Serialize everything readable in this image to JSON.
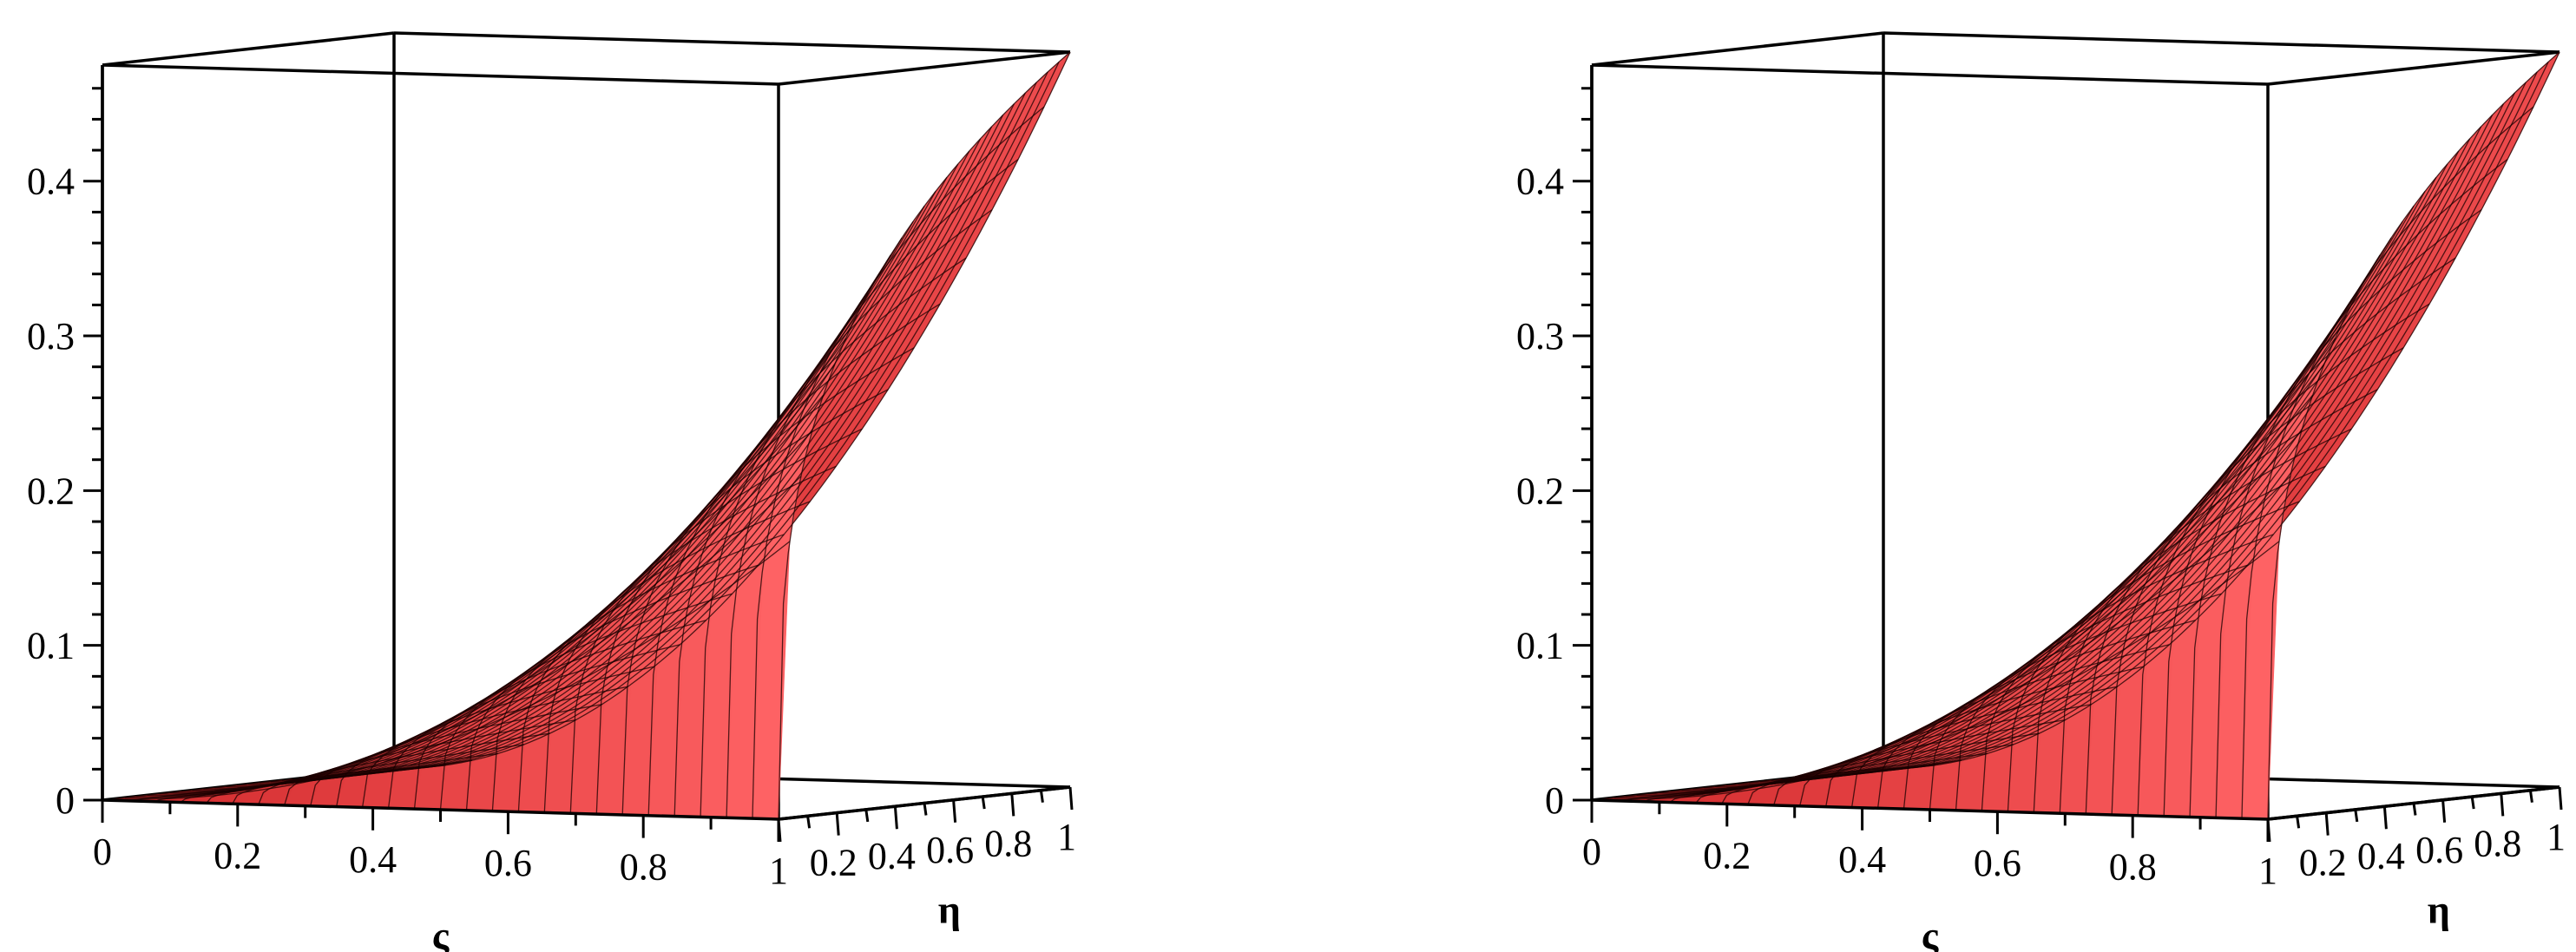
{
  "chart_data": [
    {
      "type": "surface3d",
      "xlabel": "ς",
      "ylabel": "η",
      "zlabel": "",
      "xlim": [
        0,
        1
      ],
      "ylim": [
        0,
        1
      ],
      "zlim": [
        0,
        0.475
      ],
      "x_ticks": [
        "0",
        "0.2",
        "0.4",
        "0.6",
        "0.8",
        "1"
      ],
      "y_ticks": [
        "0.2",
        "0.4",
        "0.6",
        "0.8",
        "1"
      ],
      "z_ticks": [
        "0",
        "0.1",
        "0.2",
        "0.3",
        "0.4"
      ],
      "surface": {
        "description_formula": "z ≈ 0.475 · ς² · η^0.3",
        "grid": 26,
        "color": "#e8292b",
        "mesh_color": "#1a0000",
        "corner_values": {
          "x0_y0": 0,
          "x1_y0": 0,
          "x0_y1": 0,
          "x1_y1": 0.475
        }
      }
    },
    {
      "type": "surface3d",
      "xlabel": "ς",
      "ylabel": "η",
      "zlabel": "",
      "xlim": [
        0,
        1
      ],
      "ylim": [
        0,
        1
      ],
      "zlim": [
        0,
        0.475
      ],
      "x_ticks": [
        "0",
        "0.2",
        "0.4",
        "0.6",
        "0.8",
        "1"
      ],
      "y_ticks": [
        "0.2",
        "0.4",
        "0.6",
        "0.8",
        "1"
      ],
      "z_ticks": [
        "0",
        "0.1",
        "0.2",
        "0.3",
        "0.4"
      ],
      "surface": {
        "description_formula": "z ≈ 0.475 · ς² · η^0.3",
        "grid": 26,
        "color": "#e8292b",
        "mesh_color": "#1a0000",
        "corner_values": {
          "x0_y0": 0,
          "x1_y0": 0,
          "x0_y1": 0,
          "x1_y1": 0.475
        }
      }
    }
  ]
}
